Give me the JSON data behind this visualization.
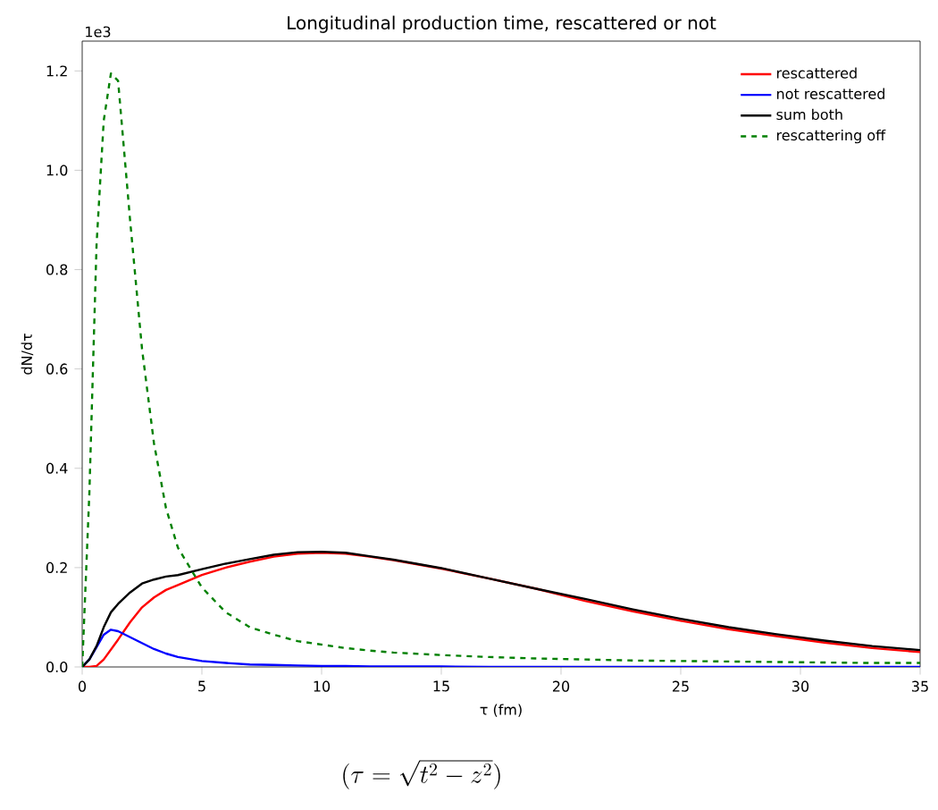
{
  "chart_data": {
    "type": "line",
    "title": "Longitudinal production time, rescattered or not",
    "xlabel": "τ (fm)",
    "ylabel": "dN/dτ",
    "annotations": [
      "1e3",
      "(\\tau = \\sqrt{t^2 - z^2})"
    ],
    "x": [
      0,
      0.3,
      0.6,
      0.9,
      1.2,
      1.5,
      2,
      2.5,
      3,
      3.5,
      4,
      5,
      6,
      7,
      8,
      9,
      10,
      11,
      12,
      13,
      15,
      17,
      19,
      21,
      23,
      25,
      27,
      29,
      31,
      33,
      35
    ],
    "series": [
      {
        "name": "rescattered",
        "color": "#ff0000",
        "line_style": "solid",
        "values": [
          0,
          0,
          0.002,
          0.015,
          0.035,
          0.055,
          0.09,
          0.12,
          0.14,
          0.155,
          0.165,
          0.185,
          0.2,
          0.212,
          0.222,
          0.228,
          0.23,
          0.228,
          0.222,
          0.215,
          0.198,
          0.178,
          0.157,
          0.133,
          0.112,
          0.093,
          0.076,
          0.062,
          0.049,
          0.038,
          0.03
        ]
      },
      {
        "name": "not rescattered",
        "color": "#0000ff",
        "line_style": "solid",
        "values": [
          0,
          0.015,
          0.04,
          0.065,
          0.075,
          0.072,
          0.06,
          0.048,
          0.036,
          0.027,
          0.02,
          0.012,
          0.008,
          0.005,
          0.004,
          0.003,
          0.002,
          0.002,
          0.001,
          0.001,
          0.001,
          0,
          0,
          0,
          0,
          0,
          0,
          0,
          0,
          0,
          0
        ]
      },
      {
        "name": "sum both",
        "color": "#000000",
        "line_style": "solid",
        "values": [
          0,
          0.015,
          0.042,
          0.08,
          0.11,
          0.127,
          0.15,
          0.168,
          0.176,
          0.182,
          0.185,
          0.197,
          0.208,
          0.217,
          0.226,
          0.231,
          0.232,
          0.23,
          0.223,
          0.216,
          0.199,
          0.178,
          0.157,
          0.137,
          0.116,
          0.097,
          0.08,
          0.066,
          0.053,
          0.042,
          0.034
        ]
      },
      {
        "name": "rescattering off",
        "color": "#008000",
        "line_style": "dashed",
        "values": [
          0,
          0.35,
          0.85,
          1.1,
          1.195,
          1.18,
          0.9,
          0.64,
          0.45,
          0.32,
          0.24,
          0.16,
          0.11,
          0.08,
          0.065,
          0.052,
          0.045,
          0.038,
          0.033,
          0.029,
          0.024,
          0.02,
          0.017,
          0.015,
          0.013,
          0.012,
          0.011,
          0.01,
          0.009,
          0.008,
          0.008
        ]
      }
    ],
    "xlim": [
      0,
      35
    ],
    "ylim": [
      0,
      1.26
    ],
    "xticks": [
      0,
      5,
      10,
      15,
      20,
      25,
      30,
      35
    ],
    "yticks": [
      {
        "value": 0,
        "label": "0.0"
      },
      0.2,
      0.4,
      0.6,
      0.8,
      {
        "value": 1,
        "label": "1.0"
      },
      1.2
    ],
    "legend": "top right",
    "grid": false
  }
}
